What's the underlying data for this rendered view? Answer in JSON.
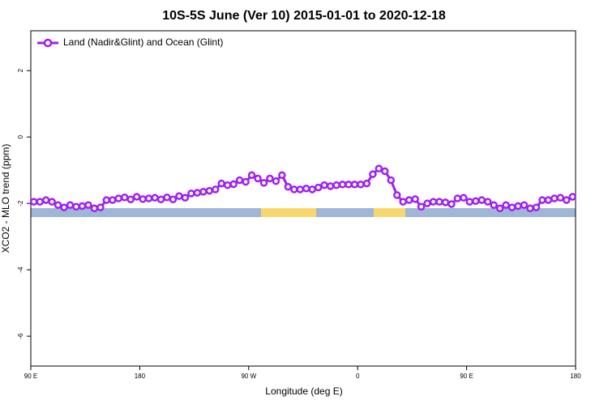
{
  "chart_data": {
    "type": "line",
    "title": "10S-5S June (Ver 10)   2015-01-01 to 2020-12-18",
    "x_label": "Longitude (deg E)",
    "y_label": "XCO2 - MLO trend (ppm)",
    "xlim": [
      90,
      540
    ],
    "ylim": [
      -6.9,
      3.2
    ],
    "xticks": [
      {
        "value": 90,
        "label": "90 E"
      },
      180,
      {
        "value": 270,
        "label": "90 W"
      },
      {
        "value": 360,
        "label": "0"
      },
      {
        "value": 450,
        "label": "90 E"
      },
      {
        "value": 540,
        "label": "180"
      }
    ],
    "yticks": [
      -6,
      -4,
      -2,
      0,
      2
    ],
    "legend": "top-left",
    "x": [
      92.5,
      97.5,
      102.5,
      107.5,
      112.5,
      117.5,
      122.5,
      127.5,
      132.5,
      137.5,
      142.5,
      147.5,
      152.5,
      157.5,
      162.5,
      167.5,
      172.5,
      177.5,
      182.5,
      187.5,
      192.5,
      197.5,
      202.5,
      207.5,
      212.5,
      217.5,
      222.5,
      227.5,
      232.5,
      237.5,
      242.5,
      247.5,
      252.5,
      257.5,
      262.5,
      267.5,
      272.5,
      277.5,
      282.5,
      287.5,
      292.5,
      297.5,
      302.5,
      307.5,
      312.5,
      317.5,
      322.5,
      327.5,
      332.5,
      337.5,
      342.5,
      347.5,
      352.5,
      357.5,
      362.5,
      367.5,
      372.5,
      377.5,
      382.5,
      387.5,
      392.5,
      397.5,
      402.5,
      407.5,
      412.5,
      417.5,
      422.5,
      427.5,
      432.5,
      437.5,
      442.5,
      447.5,
      452.5,
      457.5,
      462.5,
      467.5,
      472.5,
      477.5,
      482.5,
      487.5,
      492.5,
      497.5,
      502.5,
      507.5,
      512.5,
      517.5,
      522.5,
      527.5,
      532.5,
      537.5
    ],
    "series": [
      {
        "name": "Land (Nadir&Glint) and Ocean (Glint)",
        "color": "#a020f0",
        "values": [
          -1.95,
          -1.95,
          -1.9,
          -1.95,
          -2.05,
          -2.12,
          -2.05,
          -2.1,
          -2.08,
          -2.05,
          -2.15,
          -2.12,
          -1.9,
          -1.9,
          -1.85,
          -1.82,
          -1.88,
          -1.8,
          -1.87,
          -1.85,
          -1.83,
          -1.88,
          -1.82,
          -1.88,
          -1.78,
          -1.83,
          -1.7,
          -1.68,
          -1.65,
          -1.62,
          -1.58,
          -1.4,
          -1.45,
          -1.42,
          -1.3,
          -1.35,
          -1.15,
          -1.25,
          -1.38,
          -1.25,
          -1.33,
          -1.15,
          -1.5,
          -1.58,
          -1.58,
          -1.55,
          -1.58,
          -1.52,
          -1.45,
          -1.48,
          -1.45,
          -1.43,
          -1.43,
          -1.43,
          -1.43,
          -1.4,
          -1.12,
          -0.95,
          -1.03,
          -1.3,
          -1.75,
          -1.95,
          -1.9,
          -1.87,
          -2.1,
          -2.0,
          -1.95,
          -1.95,
          -1.97,
          -2.02,
          -1.85,
          -1.83,
          -1.95,
          -1.93,
          -1.9,
          -1.95,
          -2.05,
          -2.15,
          -2.05,
          -2.12,
          -2.08,
          -2.05,
          -2.15,
          -2.12,
          -1.9,
          -1.9,
          -1.85,
          -1.83,
          -1.9,
          -1.8
        ]
      }
    ]
  }
}
